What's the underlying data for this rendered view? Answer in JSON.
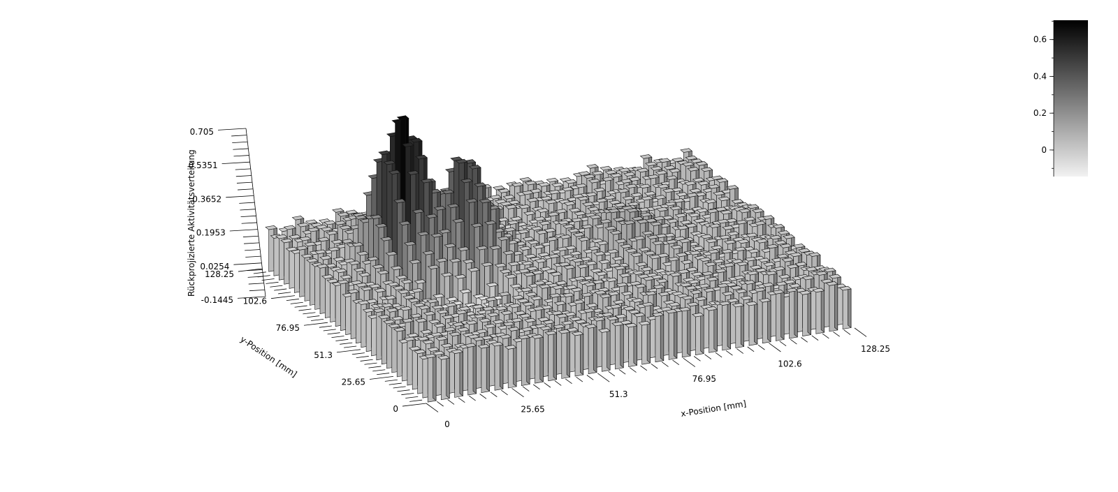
{
  "chart_data": {
    "type": "3d-bar",
    "xlabel": "x-Position [mm]",
    "ylabel": "y-Position [mm]",
    "zlabel": "Rückprojizierte Aktivitätsverteilung",
    "xticks": [
      "0",
      "25.65",
      "51.3",
      "76.95",
      "102.6",
      "128.25"
    ],
    "yticks": [
      "0",
      "25.65",
      "51.3",
      "76.95",
      "102.6",
      "128.25"
    ],
    "zticks": [
      "-0.1445",
      "0.0254",
      "0.1953",
      "0.3652",
      "0.5351",
      "0.705"
    ],
    "xlim": [
      0,
      128.25
    ],
    "ylim": [
      0,
      128.25
    ],
    "zlim": [
      -0.1445,
      0.705
    ],
    "grid_size": 32,
    "background_level": 0.05,
    "peaks": [
      {
        "x": 26.5,
        "y": 88.0,
        "value": 0.68
      },
      {
        "x": 44.0,
        "y": 84.0,
        "value": 0.47
      },
      {
        "x": 88.5,
        "y": 72.0,
        "value": 0.14
      }
    ],
    "colorbar": {
      "ticks": [
        "0",
        "0.2",
        "0.4",
        "0.6"
      ],
      "range": [
        -0.1445,
        0.705
      ],
      "colors": [
        "#f2f2f2",
        "#000000"
      ]
    }
  }
}
